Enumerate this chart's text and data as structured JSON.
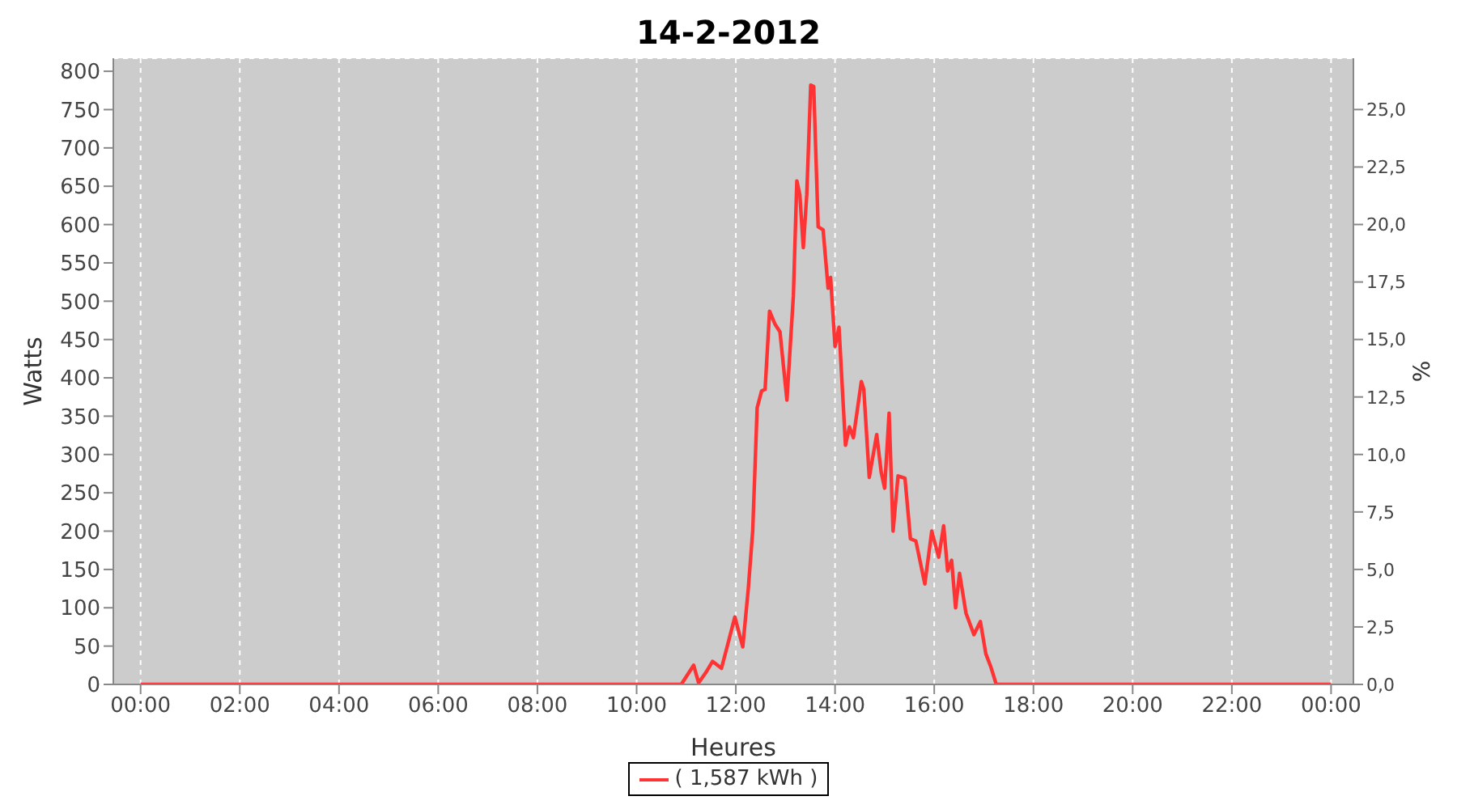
{
  "chart_data": {
    "type": "line",
    "title": "14-2-2012",
    "xlabel": "Heures",
    "ylabel": "Watts",
    "y2label": "%",
    "x": [
      0,
      10.9,
      11.15,
      11.25,
      11.39,
      11.53,
      11.71,
      11.82,
      11.98,
      12.14,
      12.25,
      12.34,
      12.43,
      12.52,
      12.59,
      12.68,
      12.79,
      12.89,
      13.03,
      13.16,
      13.23,
      13.29,
      13.36,
      13.43,
      13.51,
      13.57,
      13.66,
      13.76,
      13.86,
      13.91,
      14.0,
      14.08,
      14.21,
      14.29,
      14.37,
      14.53,
      14.58,
      14.69,
      14.84,
      14.93,
      15.0,
      15.09,
      15.17,
      15.27,
      15.41,
      15.52,
      15.63,
      15.81,
      15.95,
      16.09,
      16.19,
      16.27,
      16.35,
      16.43,
      16.51,
      16.64,
      16.8,
      16.93,
      17.04,
      17.14,
      17.25,
      24
    ],
    "series": [
      {
        "name": "( 1,587 kWh )",
        "color": "#ff3333",
        "values": [
          0,
          0,
          25,
          2,
          15,
          30,
          21,
          48,
          88,
          49,
          124,
          200,
          361,
          383,
          385,
          487,
          470,
          460,
          371,
          507,
          657,
          639,
          570,
          639,
          782,
          780,
          597,
          593,
          517,
          531,
          441,
          466,
          312,
          336,
          322,
          395,
          385,
          270,
          326,
          277,
          256,
          354,
          200,
          272,
          269,
          190,
          187,
          131,
          200,
          166,
          207,
          148,
          162,
          100,
          145,
          93,
          65,
          82,
          40,
          23,
          0,
          0
        ]
      }
    ],
    "xlim": [
      -0.55,
      24.45
    ],
    "xticks": [
      {
        "value": 0,
        "label": "00:00"
      },
      {
        "value": 2,
        "label": "02:00"
      },
      {
        "value": 4,
        "label": "04:00"
      },
      {
        "value": 6,
        "label": "06:00"
      },
      {
        "value": 8,
        "label": "08:00"
      },
      {
        "value": 10,
        "label": "10:00"
      },
      {
        "value": 12,
        "label": "12:00"
      },
      {
        "value": 14,
        "label": "14:00"
      },
      {
        "value": 16,
        "label": "16:00"
      },
      {
        "value": 18,
        "label": "18:00"
      },
      {
        "value": 20,
        "label": "20:00"
      },
      {
        "value": 22,
        "label": "22:00"
      },
      {
        "value": 24,
        "label": "00:00"
      }
    ],
    "ylim": [
      0,
      817
    ],
    "yticks": [
      0,
      50,
      100,
      150,
      200,
      250,
      300,
      350,
      400,
      450,
      500,
      550,
      600,
      650,
      700,
      750,
      800
    ],
    "y2lim": [
      0,
      27.23
    ],
    "y2ticks": [
      {
        "value": 0,
        "label": "0,0"
      },
      {
        "value": 2.5,
        "label": "2,5"
      },
      {
        "value": 5,
        "label": "5,0"
      },
      {
        "value": 7.5,
        "label": "7,5"
      },
      {
        "value": 10,
        "label": "10,0"
      },
      {
        "value": 12.5,
        "label": "12,5"
      },
      {
        "value": 15,
        "label": "15,0"
      },
      {
        "value": 17.5,
        "label": "17,5"
      },
      {
        "value": 20,
        "label": "20,0"
      },
      {
        "value": 22.5,
        "label": "22,5"
      },
      {
        "value": 25,
        "label": "25,0"
      }
    ],
    "grid": true,
    "legend": "bottom",
    "marker": "none",
    "line_style": "solid"
  }
}
